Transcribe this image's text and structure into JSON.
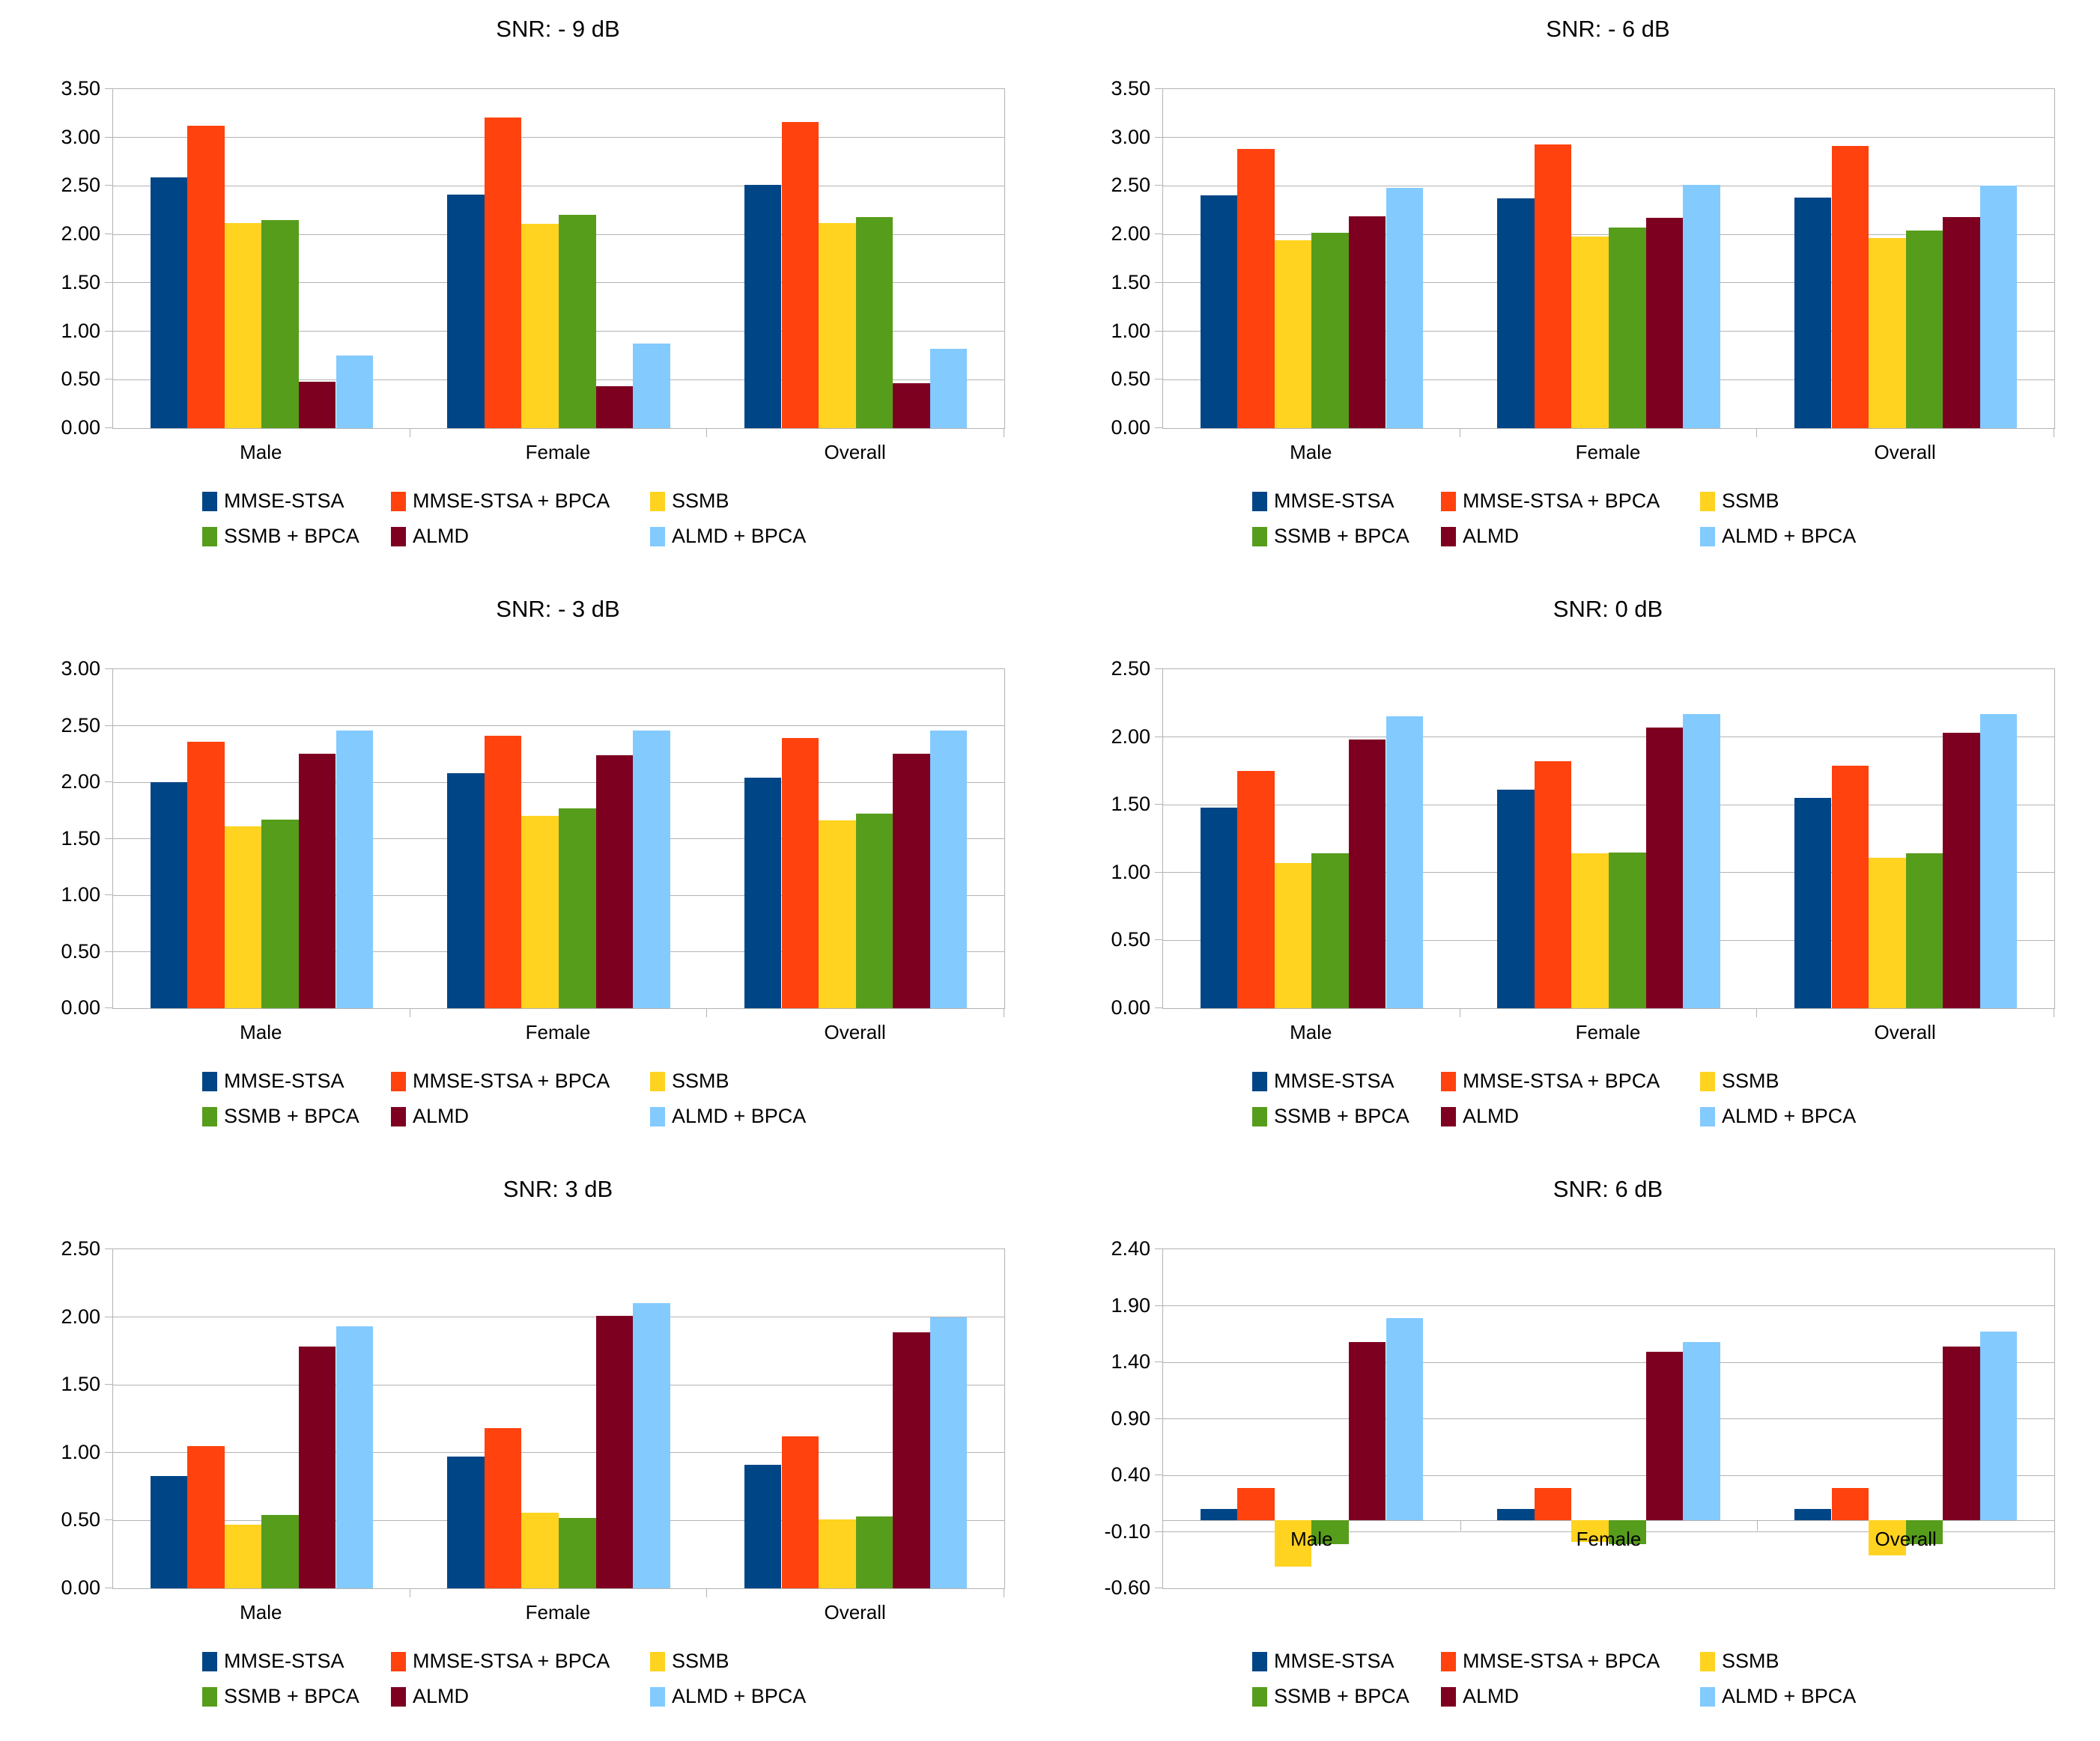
{
  "page": {
    "background": "#ffffff"
  },
  "colors": {
    "gridline": "#b3b3b3",
    "plot_border": "#b3b3b3",
    "text": "#000000"
  },
  "legend": {
    "position": "bottom",
    "rows": [
      [
        "MMSE-STSA",
        "MMSE-STSA + BPCA",
        "SSMB"
      ],
      [
        "SSMB + BPCA",
        "ALMD",
        "ALMD + BPCA"
      ]
    ]
  },
  "chart_data": [
    {
      "type": "bar",
      "title": "SNR: - 9 dB",
      "categories": [
        "Male",
        "Female",
        "Overall"
      ],
      "xlabel": "",
      "ylabel": "",
      "ylim": [
        0,
        3.5
      ],
      "ytick_step": 0.5,
      "grid": true,
      "legend_position": "bottom",
      "yticks": [
        "3.50",
        "3.00",
        "2.50",
        "2.00",
        "1.50",
        "1.00",
        "0.50",
        "0.00"
      ],
      "series": [
        {
          "name": "MMSE-STSA",
          "color": "#004586",
          "values": [
            2.59,
            2.41,
            2.51
          ]
        },
        {
          "name": "MMSE-STSA + BPCA",
          "color": "#ff420e",
          "values": [
            3.12,
            3.21,
            3.16
          ]
        },
        {
          "name": "SSMB",
          "color": "#ffd320",
          "values": [
            2.12,
            2.11,
            2.12
          ]
        },
        {
          "name": "SSMB + BPCA",
          "color": "#579d1c",
          "values": [
            2.15,
            2.2,
            2.18
          ]
        },
        {
          "name": "ALMD",
          "color": "#7e0021",
          "values": [
            0.48,
            0.43,
            0.46
          ]
        },
        {
          "name": "ALMD + BPCA",
          "color": "#83caff",
          "values": [
            0.75,
            0.87,
            0.82
          ]
        }
      ]
    },
    {
      "type": "bar",
      "title": "SNR: - 6 dB",
      "categories": [
        "Male",
        "Female",
        "Overall"
      ],
      "xlabel": "",
      "ylabel": "",
      "ylim": [
        0,
        3.5
      ],
      "ytick_step": 0.5,
      "grid": true,
      "legend_position": "bottom",
      "yticks": [
        "3.50",
        "3.00",
        "2.50",
        "2.00",
        "1.50",
        "1.00",
        "0.50",
        "0.00"
      ],
      "series": [
        {
          "name": "MMSE-STSA",
          "color": "#004586",
          "values": [
            2.4,
            2.37,
            2.38
          ]
        },
        {
          "name": "MMSE-STSA + BPCA",
          "color": "#ff420e",
          "values": [
            2.88,
            2.93,
            2.91
          ]
        },
        {
          "name": "SSMB",
          "color": "#ffd320",
          "values": [
            1.94,
            1.98,
            1.96
          ]
        },
        {
          "name": "SSMB + BPCA",
          "color": "#579d1c",
          "values": [
            2.02,
            2.07,
            2.04
          ]
        },
        {
          "name": "ALMD",
          "color": "#7e0021",
          "values": [
            2.19,
            2.17,
            2.18
          ]
        },
        {
          "name": "ALMD + BPCA",
          "color": "#83caff",
          "values": [
            2.48,
            2.51,
            2.5
          ]
        }
      ]
    },
    {
      "type": "bar",
      "title": "SNR: - 3 dB",
      "categories": [
        "Male",
        "Female",
        "Overall"
      ],
      "xlabel": "",
      "ylabel": "",
      "ylim": [
        0,
        3.0
      ],
      "ytick_step": 0.5,
      "grid": true,
      "legend_position": "bottom",
      "yticks": [
        "3.00",
        "2.50",
        "2.00",
        "1.50",
        "1.00",
        "0.50",
        "0.00"
      ],
      "series": [
        {
          "name": "MMSE-STSA",
          "color": "#004586",
          "values": [
            2.0,
            2.08,
            2.04
          ]
        },
        {
          "name": "MMSE-STSA + BPCA",
          "color": "#ff420e",
          "values": [
            2.36,
            2.41,
            2.39
          ]
        },
        {
          "name": "SSMB",
          "color": "#ffd320",
          "values": [
            1.61,
            1.7,
            1.66
          ]
        },
        {
          "name": "SSMB + BPCA",
          "color": "#579d1c",
          "values": [
            1.67,
            1.77,
            1.72
          ]
        },
        {
          "name": "ALMD",
          "color": "#7e0021",
          "values": [
            2.25,
            2.24,
            2.25
          ]
        },
        {
          "name": "ALMD + BPCA",
          "color": "#83caff",
          "values": [
            2.46,
            2.46,
            2.46
          ]
        }
      ]
    },
    {
      "type": "bar",
      "title": "SNR: 0 dB",
      "categories": [
        "Male",
        "Female",
        "Overall"
      ],
      "xlabel": "",
      "ylabel": "",
      "ylim": [
        0,
        2.5
      ],
      "ytick_step": 0.5,
      "grid": true,
      "legend_position": "bottom",
      "yticks": [
        "2.50",
        "2.00",
        "1.50",
        "1.00",
        "0.50",
        "0.00"
      ],
      "series": [
        {
          "name": "MMSE-STSA",
          "color": "#004586",
          "values": [
            1.48,
            1.61,
            1.55
          ]
        },
        {
          "name": "MMSE-STSA + BPCA",
          "color": "#ff420e",
          "values": [
            1.75,
            1.82,
            1.79
          ]
        },
        {
          "name": "SSMB",
          "color": "#ffd320",
          "values": [
            1.07,
            1.14,
            1.11
          ]
        },
        {
          "name": "SSMB + BPCA",
          "color": "#579d1c",
          "values": [
            1.14,
            1.15,
            1.14
          ]
        },
        {
          "name": "ALMD",
          "color": "#7e0021",
          "values": [
            1.98,
            2.07,
            2.03
          ]
        },
        {
          "name": "ALMD + BPCA",
          "color": "#83caff",
          "values": [
            2.15,
            2.17,
            2.17
          ]
        }
      ]
    },
    {
      "type": "bar",
      "title": "SNR: 3 dB",
      "categories": [
        "Male",
        "Female",
        "Overall"
      ],
      "xlabel": "",
      "ylabel": "",
      "ylim": [
        0,
        2.5
      ],
      "ytick_step": 0.5,
      "grid": true,
      "legend_position": "bottom",
      "yticks": [
        "2.50",
        "2.00",
        "1.50",
        "1.00",
        "0.50",
        "0.00"
      ],
      "series": [
        {
          "name": "MMSE-STSA",
          "color": "#004586",
          "values": [
            0.83,
            0.97,
            0.91
          ]
        },
        {
          "name": "MMSE-STSA + BPCA",
          "color": "#ff420e",
          "values": [
            1.05,
            1.18,
            1.12
          ]
        },
        {
          "name": "SSMB",
          "color": "#ffd320",
          "values": [
            0.47,
            0.56,
            0.51
          ]
        },
        {
          "name": "SSMB + BPCA",
          "color": "#579d1c",
          "values": [
            0.54,
            0.52,
            0.53
          ]
        },
        {
          "name": "ALMD",
          "color": "#7e0021",
          "values": [
            1.78,
            2.01,
            1.89
          ]
        },
        {
          "name": "ALMD + BPCA",
          "color": "#83caff",
          "values": [
            1.93,
            2.1,
            2.0
          ]
        }
      ]
    },
    {
      "type": "bar",
      "title": "SNR: 6 dB",
      "categories": [
        "Male",
        "Female",
        "Overall"
      ],
      "xlabel": "",
      "ylabel": "",
      "ylim": [
        -0.6,
        2.4
      ],
      "ytick_step": 0.5,
      "grid": true,
      "legend_position": "bottom",
      "yticks": [
        "2.40",
        "1.90",
        "1.40",
        "0.90",
        "0.40",
        "-0.10",
        "-0.60"
      ],
      "series": [
        {
          "name": "MMSE-STSA",
          "color": "#004586",
          "values": [
            0.1,
            0.1,
            0.1
          ]
        },
        {
          "name": "MMSE-STSA + BPCA",
          "color": "#ff420e",
          "values": [
            0.29,
            0.29,
            0.29
          ]
        },
        {
          "name": "SSMB",
          "color": "#ffd320",
          "values": [
            -0.41,
            -0.19,
            -0.31
          ]
        },
        {
          "name": "SSMB + BPCA",
          "color": "#579d1c",
          "values": [
            -0.21,
            -0.21,
            -0.21
          ]
        },
        {
          "name": "ALMD",
          "color": "#7e0021",
          "values": [
            1.58,
            1.49,
            1.54
          ]
        },
        {
          "name": "ALMD + BPCA",
          "color": "#83caff",
          "values": [
            1.79,
            1.58,
            1.67
          ]
        }
      ]
    }
  ]
}
